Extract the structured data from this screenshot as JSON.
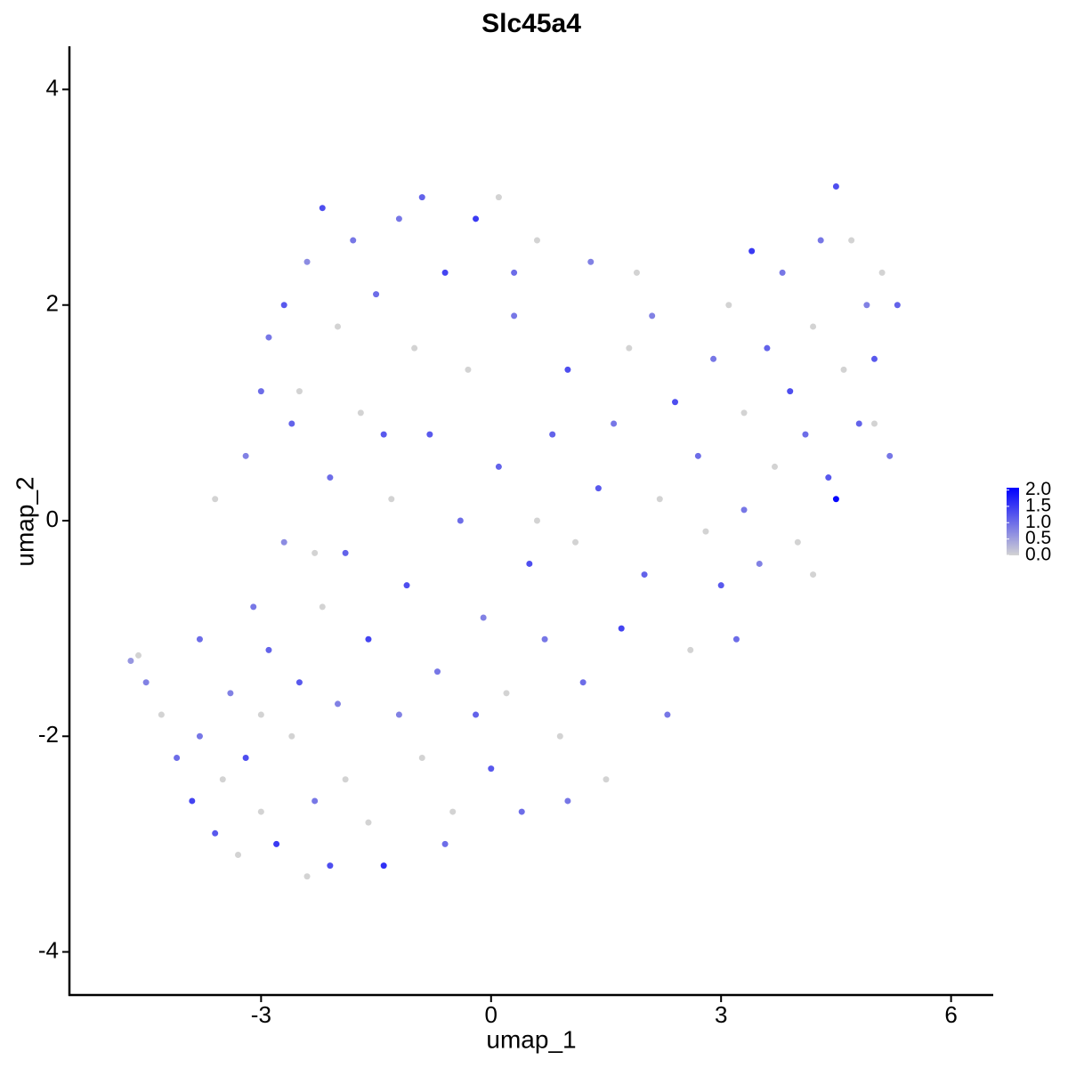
{
  "chart_data": {
    "type": "scatter",
    "title": "Slc45a4",
    "x_label": "umap_1",
    "y_label": "umap_2",
    "xlim": [
      -5.5,
      6.55
    ],
    "xticks": [
      -3,
      0,
      3,
      6
    ],
    "ylim": [
      -4.4,
      4.4
    ],
    "yticks": [
      -4,
      -2,
      0,
      2,
      4
    ],
    "color_low": "#d3d3d3",
    "color_high": "#0000ff",
    "colorlim": [
      0,
      2.07
    ],
    "colorticks": [
      {
        "value": 0,
        "label": "0.0"
      },
      0.5,
      {
        "value": 1,
        "label": "1.0"
      },
      1.5,
      {
        "value": 2,
        "label": "2.0"
      }
    ],
    "x": [
      -4.7,
      -4.6,
      -4.5,
      -4.3,
      -4.1,
      -3.9,
      -3.8,
      -3.6,
      -3.5,
      -3.4,
      -3.3,
      -3.2,
      -3.1,
      -3.0,
      -2.9,
      -2.8,
      -2.7,
      -2.6,
      -2.5,
      -2.4,
      -2.3,
      -2.2,
      -2.1,
      -2.0,
      -1.9,
      -3.6,
      -3.2,
      -3.0,
      -2.9,
      -2.7,
      -2.5,
      -2.4,
      -2.2,
      -2.1,
      -2.0,
      -1.9,
      -1.8,
      -1.7,
      -1.6,
      -1.5,
      -1.4,
      -1.3,
      -1.2,
      -1.1,
      -1.0,
      -0.9,
      -0.9,
      -0.8,
      -0.7,
      -0.6,
      -0.5,
      -0.4,
      -0.3,
      -0.2,
      -0.1,
      0.0,
      0.1,
      0.1,
      0.2,
      0.3,
      0.4,
      0.5,
      0.6,
      0.7,
      0.8,
      0.9,
      1.0,
      1.1,
      1.2,
      1.3,
      1.4,
      1.5,
      1.6,
      1.7,
      1.8,
      2.0,
      2.1,
      2.2,
      2.3,
      2.4,
      2.6,
      2.7,
      2.9,
      3.0,
      3.1,
      3.2,
      3.3,
      3.4,
      3.5,
      3.6,
      3.7,
      3.8,
      3.9,
      4.0,
      4.1,
      4.2,
      4.3,
      4.4,
      4.5,
      4.5,
      4.6,
      4.7,
      4.8,
      4.9,
      5.0,
      5.1,
      5.2,
      5.3,
      -1.6,
      -0.6,
      -3.0,
      -2.6,
      -1.2,
      0.6,
      1.9,
      2.8,
      -3.8,
      -2.3,
      -0.2,
      1.0,
      0.3,
      -1.4,
      4.2,
      3.3,
      5.0
    ],
    "y": [
      -1.3,
      -1.25,
      -1.5,
      -1.8,
      -2.2,
      -2.6,
      -2.0,
      -2.9,
      -2.4,
      -1.6,
      -3.1,
      -2.2,
      -0.8,
      -2.7,
      -1.2,
      -3.0,
      -0.2,
      -2.0,
      -1.5,
      -3.3,
      -2.6,
      -0.8,
      -3.2,
      -1.7,
      -2.4,
      0.2,
      0.6,
      1.2,
      1.7,
      2.0,
      1.2,
      2.4,
      2.9,
      0.4,
      1.8,
      -0.3,
      2.6,
      1.0,
      -1.1,
      2.1,
      -3.2,
      0.2,
      2.8,
      -0.6,
      1.6,
      3.0,
      -2.2,
      0.8,
      -1.4,
      2.3,
      -2.7,
      0.0,
      1.4,
      2.8,
      -0.9,
      -2.3,
      3.0,
      0.5,
      -1.6,
      1.9,
      -2.7,
      -0.4,
      2.6,
      -1.1,
      0.8,
      -2.0,
      1.4,
      -0.2,
      -1.5,
      2.4,
      0.3,
      -2.4,
      0.9,
      -1.0,
      1.6,
      -0.5,
      1.9,
      0.2,
      -1.8,
      1.1,
      -1.2,
      0.6,
      1.5,
      -0.6,
      2.0,
      -1.1,
      1.0,
      2.5,
      -0.4,
      1.6,
      0.5,
      2.3,
      1.2,
      -0.2,
      0.8,
      1.8,
      2.6,
      0.4,
      0.2,
      3.1,
      1.4,
      2.6,
      0.9,
      2.0,
      1.5,
      2.3,
      0.6,
      2.0,
      -2.8,
      -3.0,
      -1.8,
      0.9,
      -1.8,
      0.0,
      2.3,
      -0.1,
      -1.1,
      -0.3,
      -1.8,
      -2.6,
      2.3,
      0.8,
      -0.5,
      0.1,
      0.9
    ],
    "expression": [
      0.6,
      0,
      0.8,
      0,
      1.0,
      1.4,
      0.9,
      1.2,
      0,
      0.8,
      0,
      1.3,
      0.9,
      0,
      1.1,
      1.5,
      0.7,
      0,
      1.2,
      0,
      0.9,
      0,
      1.3,
      0.8,
      0,
      0,
      0.8,
      1.0,
      0.9,
      1.2,
      0,
      0.7,
      1.3,
      1.0,
      0,
      1.1,
      0.9,
      0,
      1.4,
      1.0,
      1.6,
      0,
      0.9,
      1.3,
      0,
      1.1,
      0,
      1.2,
      0.9,
      1.4,
      0,
      1.0,
      0,
      1.5,
      0.8,
      1.2,
      0,
      1.1,
      0,
      0.9,
      1.0,
      1.3,
      0,
      0.9,
      1.1,
      0,
      1.3,
      0,
      1.0,
      0.8,
      1.2,
      0,
      0.9,
      1.4,
      0,
      1.1,
      0.8,
      0,
      0.9,
      1.3,
      0,
      1.0,
      0.9,
      1.2,
      0,
      1.0,
      0,
      1.5,
      0.8,
      1.1,
      0,
      0.9,
      1.3,
      0,
      1.0,
      0,
      0.9,
      1.2,
      2.0,
      1.3,
      0,
      0,
      1.1,
      0.8,
      1.2,
      0,
      0.9,
      1.1,
      0,
      1.0,
      0,
      1.1,
      0.8,
      0,
      0,
      0,
      1.0,
      0,
      1.1,
      0.9,
      1.0,
      1.2,
      0,
      0.9,
      0
    ]
  }
}
